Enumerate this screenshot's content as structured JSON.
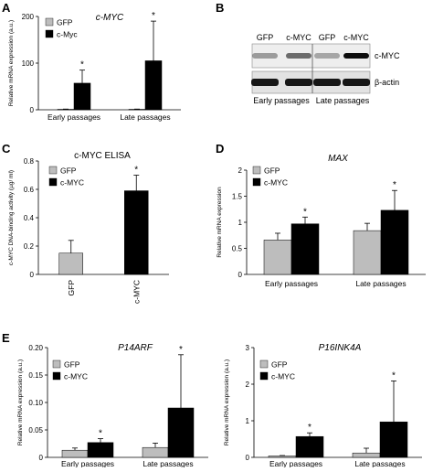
{
  "figure": {
    "panel_letters": [
      "A",
      "B",
      "C",
      "D",
      "E"
    ]
  },
  "colors": {
    "gfp": "#bdbdbd",
    "myc": "#000000",
    "axis": "#000000"
  },
  "blot": {
    "lane_labels": [
      "GFP",
      "c-MYC",
      "GFP",
      "c-MYC"
    ],
    "row_labels": [
      "c-MYC",
      "β-actin"
    ],
    "group_labels": [
      "Early passages",
      "Late passages"
    ],
    "myc_band_intensity": [
      0.35,
      0.55,
      0.3,
      0.95
    ],
    "actin_band_intensity": [
      0.9,
      0.9,
      0.9,
      0.9
    ]
  },
  "chart_data": [
    {
      "id": "A",
      "type": "bar",
      "title": "c-MYC",
      "ylabel": "Relative mRNA expression (a.u.)",
      "ylim": [
        0,
        200
      ],
      "yticks": [
        "0",
        "100",
        "200"
      ],
      "categories": [
        "Early passages",
        "Late passages"
      ],
      "series": [
        {
          "name": "GFP",
          "color": "#bdbdbd",
          "values": [
            1,
            1
          ],
          "errors": [
            0.5,
            0.5
          ]
        },
        {
          "name": "c-Myc",
          "color": "#000000",
          "values": [
            57,
            105
          ],
          "errors": [
            28,
            85
          ]
        }
      ],
      "significance": [
        "*",
        "*"
      ]
    },
    {
      "id": "C",
      "type": "bar",
      "title": "c-MYC ELISA",
      "ylabel": "c-MYC DNA-binding activity (µg/ ml)",
      "ylim": [
        0,
        0.8
      ],
      "yticks": [
        "0",
        "0.2",
        "0.4",
        "0.6",
        "0.8"
      ],
      "categories": [
        "GFP",
        "c-MYC"
      ],
      "series": [
        {
          "name": "GFP",
          "color": "#bdbdbd",
          "values": [
            0.15,
            null
          ],
          "errors": [
            0.09,
            null
          ]
        },
        {
          "name": "c-MYC",
          "color": "#000000",
          "values": [
            null,
            0.59
          ],
          "errors": [
            null,
            0.11
          ]
        }
      ],
      "significance": [
        "",
        "*"
      ]
    },
    {
      "id": "D",
      "type": "bar",
      "title": "MAX",
      "ylabel": "Relative mRNA expression",
      "ylim": [
        0,
        2
      ],
      "yticks": [
        "0",
        "0.5",
        "1",
        "1.5",
        "2"
      ],
      "categories": [
        "Early passages",
        "Late passages"
      ],
      "series": [
        {
          "name": "GFP",
          "color": "#bdbdbd",
          "values": [
            0.66,
            0.84
          ],
          "errors": [
            0.13,
            0.14
          ]
        },
        {
          "name": "c-MYC",
          "color": "#000000",
          "values": [
            0.97,
            1.23
          ],
          "errors": [
            0.13,
            0.38
          ]
        }
      ],
      "significance": [
        "*",
        "*"
      ]
    },
    {
      "id": "E1",
      "type": "bar",
      "title": "P14ARF",
      "ylabel": "Relative mRNA expression (a.u.)",
      "ylim": [
        0,
        0.2
      ],
      "yticks": [
        "0",
        "0.05",
        "0.10",
        "0.15",
        "0.20"
      ],
      "categories": [
        "Early passages",
        "Late passages"
      ],
      "series": [
        {
          "name": "GFP",
          "color": "#bdbdbd",
          "values": [
            0.013,
            0.018
          ],
          "errors": [
            0.004,
            0.008
          ]
        },
        {
          "name": "c-MYC",
          "color": "#000000",
          "values": [
            0.027,
            0.09
          ],
          "errors": [
            0.007,
            0.097
          ]
        }
      ],
      "significance": [
        "*",
        "*"
      ]
    },
    {
      "id": "E2",
      "type": "bar",
      "title": "P16INK4A",
      "ylabel": "Relative mRNA expression (a.u.)",
      "ylim": [
        0,
        3
      ],
      "yticks": [
        "0",
        "1",
        "2",
        "3"
      ],
      "categories": [
        "Early passages",
        "Late passages"
      ],
      "series": [
        {
          "name": "GFP",
          "color": "#bdbdbd",
          "values": [
            0.04,
            0.12
          ],
          "errors": [
            0.01,
            0.13
          ]
        },
        {
          "name": "c-MYC",
          "color": "#000000",
          "values": [
            0.57,
            0.97
          ],
          "errors": [
            0.1,
            1.12
          ]
        }
      ],
      "significance": [
        "*",
        "*"
      ]
    }
  ]
}
